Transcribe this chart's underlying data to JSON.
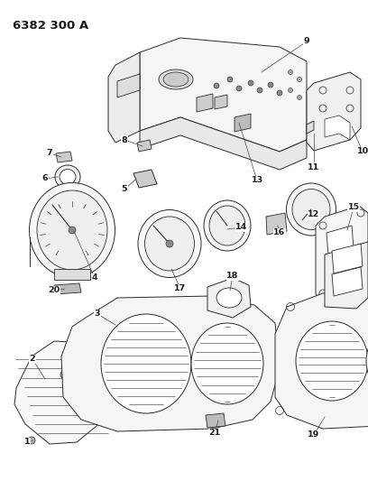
{
  "title": "6382 300 A",
  "background_color": "#ffffff",
  "text_color": "#1a1a1a",
  "line_color": "#2a2a2a",
  "lw": 0.7,
  "figsize": [
    4.08,
    5.33
  ],
  "dpi": 100,
  "label_fs": 6.8,
  "title_fs": 9.5
}
